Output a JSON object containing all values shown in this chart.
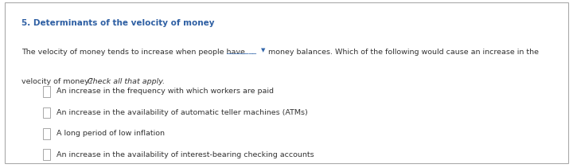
{
  "title": "5. Determinants of the velocity of money",
  "title_color": "#2e5fa3",
  "title_fontsize": 7.5,
  "body_text_1": "The velocity of money tends to increase when people have",
  "blank_text": "________",
  "dropdown_arrow": "▼",
  "body_text_2": "  money balances. Which of the following would cause an increase in the",
  "body_text_3a": "velocity of money? ",
  "body_text_3b": "Check all that apply.",
  "body_fontsize": 6.8,
  "body_color": "#333333",
  "checkbox_options": [
    "An increase in the frequency with which workers are paid",
    "An increase in the availability of automatic teller machines (ATMs)",
    "A long period of low inflation",
    "An increase in the availability of interest-bearing checking accounts"
  ],
  "background_color": "#ffffff",
  "border_color": "#aaaaaa",
  "underline_color": "#3366aa",
  "dropdown_color": "#3366aa",
  "checkbox_color": "#999999",
  "option_color": "#333333",
  "option_fontsize": 6.8
}
